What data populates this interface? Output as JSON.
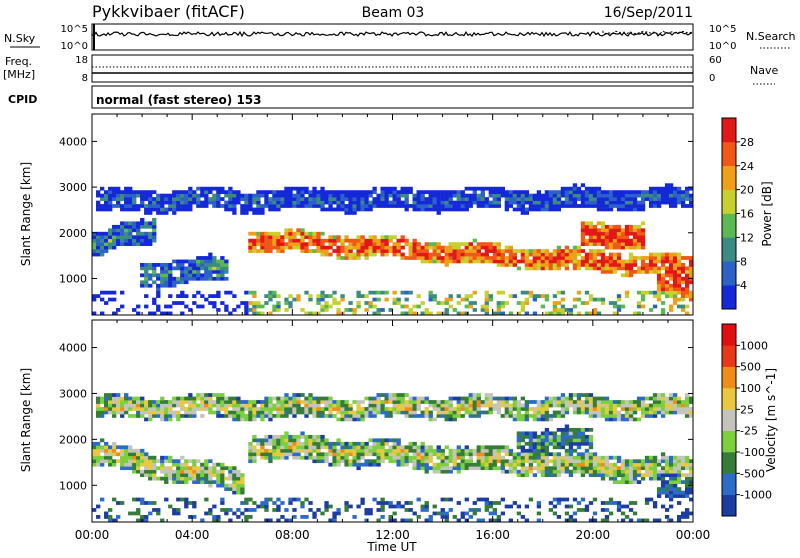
{
  "header": {
    "station": "Pykkvibaer (fitACF)",
    "beam": "Beam 03",
    "date": "16/Sep/2011"
  },
  "noise_panel": {
    "left_label": "N.Sky",
    "left_top": "10^5",
    "left_bottom": "10^0",
    "right_label": "N.Search",
    "right_top": "10^5",
    "right_bottom": "10^0"
  },
  "freq_panel": {
    "label_line1": "Freq.",
    "label_line2": "[MHz]",
    "left_top": "18",
    "left_bottom": "8",
    "right_label": "Nave",
    "right_top": "60",
    "right_bottom": "0"
  },
  "cpid": {
    "label": "CPID",
    "text": "normal (fast stereo) 153"
  },
  "chart_data": [
    {
      "type": "heatmap",
      "name": "power-panel",
      "ylabel": "Slant Range [km]",
      "ylim": [
        200,
        4600
      ],
      "y_ticks": [
        "1000",
        "2000",
        "3000",
        "4000"
      ],
      "colorbar_label": "Power [dB]",
      "colorbar_ticks": [
        "4",
        "8",
        "12",
        "16",
        "20",
        "24",
        "28"
      ],
      "colors": [
        "#1428d8",
        "#2c62c8",
        "#3c8a84",
        "#5cb850",
        "#c8d030",
        "#f0a018",
        "#f05818",
        "#e01818"
      ],
      "features": [
        {
          "t0": 6.3,
          "t1": 24.0,
          "center_start": 1850,
          "center_end": 1250,
          "width": 260,
          "level": 0.85
        },
        {
          "t0": 0.2,
          "t1": 24.0,
          "center_start": 2700,
          "center_end": 2750,
          "width": 260,
          "level": 0.15
        },
        {
          "t0": 19.5,
          "t1": 22.0,
          "center_start": 1950,
          "center_end": 1950,
          "width": 300,
          "level": 0.95
        },
        {
          "t0": 0.0,
          "t1": 2.5,
          "center_start": 1700,
          "center_end": 2100,
          "width": 300,
          "level": 0.3
        },
        {
          "t0": 2.0,
          "t1": 5.5,
          "center_start": 1100,
          "center_end": 1200,
          "width": 300,
          "level": 0.3
        },
        {
          "t0": 22.5,
          "t1": 24.0,
          "center_start": 900,
          "center_end": 900,
          "width": 350,
          "level": 0.9
        }
      ]
    },
    {
      "type": "heatmap",
      "name": "velocity-panel",
      "xlabel": "Time UT",
      "ylabel": "Slant Range [km]",
      "ylim": [
        200,
        4600
      ],
      "y_ticks": [
        "1000",
        "2000",
        "3000",
        "4000"
      ],
      "x_ticks": [
        "00:00",
        "04:00",
        "08:00",
        "12:00",
        "16:00",
        "20:00",
        "00:00"
      ],
      "colorbar_label": "Velocity [m s^-1]",
      "colorbar_ticks": [
        "1000",
        "500",
        "100",
        "25",
        "-25",
        "-100",
        "-500",
        "-1000"
      ],
      "colors": [
        "#1c3ca0",
        "#2c6cc8",
        "#347c38",
        "#7cd040",
        "#c4c4bc",
        "#e8c840",
        "#f08c18",
        "#e83818",
        "#e01010"
      ],
      "features": [
        {
          "t0": 6.3,
          "t1": 24.0,
          "center_start": 1850,
          "center_end": 1300,
          "width": 300,
          "level": 0.5
        },
        {
          "t0": 0.2,
          "t1": 24.0,
          "center_start": 2700,
          "center_end": 2700,
          "width": 260,
          "level": 0.5
        },
        {
          "t0": 0.0,
          "t1": 6.0,
          "center_start": 1700,
          "center_end": 1100,
          "width": 300,
          "level": 0.5
        },
        {
          "t0": 17.0,
          "t1": 20.0,
          "center_start": 2000,
          "center_end": 2000,
          "width": 250,
          "level": 0.3
        },
        {
          "t0": 22.5,
          "t1": 24.0,
          "center_start": 1000,
          "center_end": 1000,
          "width": 350,
          "level": 0.2
        }
      ]
    }
  ]
}
